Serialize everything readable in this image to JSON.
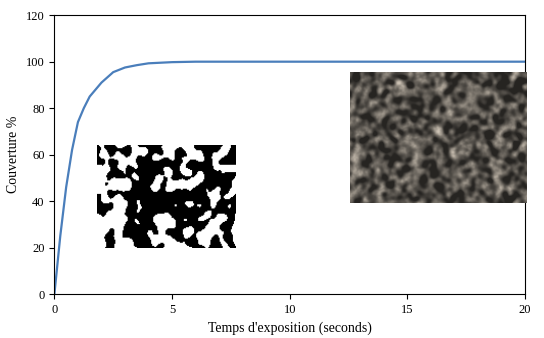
{
  "chart_data": {
    "type": "line",
    "x_label": "Temps d'exposition (seconds)",
    "y_label": "Couverture %",
    "x": [
      0,
      0.25,
      0.5,
      0.75,
      1,
      1.25,
      1.5,
      2,
      2.5,
      3,
      3.5,
      4,
      5,
      6,
      8,
      10,
      15,
      20
    ],
    "values": [
      0,
      25,
      46,
      62,
      74,
      80,
      85,
      91,
      95.5,
      97.5,
      98.5,
      99.3,
      99.8,
      100,
      100,
      100,
      100,
      100
    ],
    "color": "#4a7ebb",
    "xlim": [
      0,
      20
    ],
    "xticks": [
      0,
      5,
      10,
      15,
      20
    ],
    "ylim": [
      0,
      120
    ],
    "yticks": [
      0,
      20,
      40,
      60,
      80,
      100,
      120
    ],
    "grid": false
  }
}
